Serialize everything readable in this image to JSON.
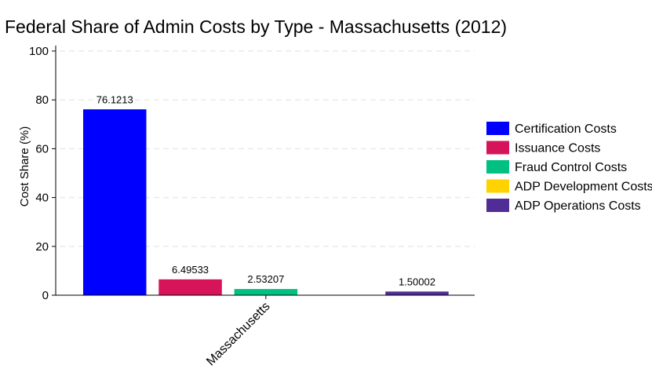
{
  "chart_data": {
    "type": "bar",
    "title": "Federal Share of Admin Costs by Type - Massachusetts (2012)",
    "xlabel": "",
    "ylabel": "Cost Share (%)",
    "ylim": [
      0,
      100
    ],
    "yticks": [
      0,
      20,
      40,
      60,
      80,
      100
    ],
    "grid": "horizontal dashed",
    "legend_position": "right",
    "categories": [
      "Massachusetts"
    ],
    "series": [
      {
        "name": "Certification Costs",
        "values": [
          76.1213
        ],
        "label": "76.1213",
        "color": "#0000ff"
      },
      {
        "name": "Issuance Costs",
        "values": [
          6.49533
        ],
        "label": "6.49533",
        "color": "#d6145a"
      },
      {
        "name": "Fraud Control Costs",
        "values": [
          2.53207
        ],
        "label": "2.53207",
        "color": "#00c082"
      },
      {
        "name": "ADP Development Costs",
        "values": [
          0
        ],
        "label": "",
        "color": "#ffd200"
      },
      {
        "name": "ADP Operations Costs",
        "values": [
          1.50002
        ],
        "label": "1.50002",
        "color": "#502c96"
      }
    ]
  }
}
